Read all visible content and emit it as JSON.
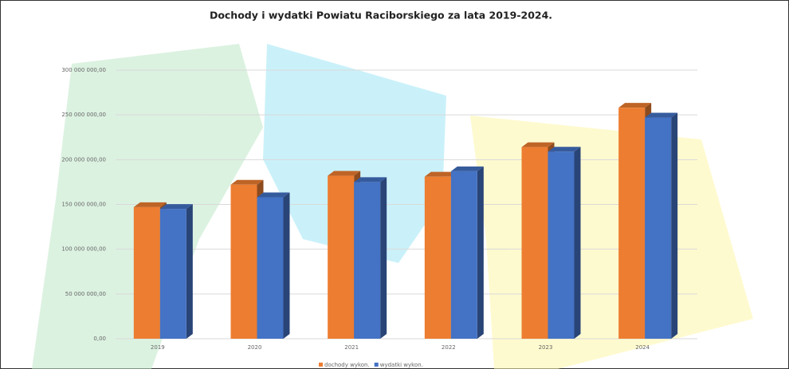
{
  "chart_data": {
    "type": "bar3d",
    "title": "Dochody i wydatki Powiatu Raciborskiego za lata 2019-2024.",
    "categories": [
      "2019",
      "2020",
      "2021",
      "2022",
      "2023",
      "2024"
    ],
    "series": [
      {
        "name": "dochody wykon.",
        "color": "#ed7d31",
        "values": [
          147000000,
          172000000,
          182000000,
          181000000,
          214000000,
          258000000
        ]
      },
      {
        "name": "wydatki wykon.",
        "color": "#4472c4",
        "values": [
          145000000,
          158000000,
          175000000,
          187000000,
          209000000,
          247000000
        ]
      }
    ],
    "ylim": [
      0,
      300000000
    ],
    "yticks": [
      {
        "value": 0,
        "label": "0,00"
      },
      {
        "value": 50000000,
        "label": "50 000 000,00"
      },
      {
        "value": 100000000,
        "label": "100 000 000,00"
      },
      {
        "value": 150000000,
        "label": "150 000 000,00"
      },
      {
        "value": 200000000,
        "label": "200 000 000,00"
      },
      {
        "value": 250000000,
        "label": "250 000 000,00"
      },
      {
        "value": 300000000,
        "label": "300 000 000,00"
      }
    ],
    "grid": true,
    "legend": "bottom"
  }
}
